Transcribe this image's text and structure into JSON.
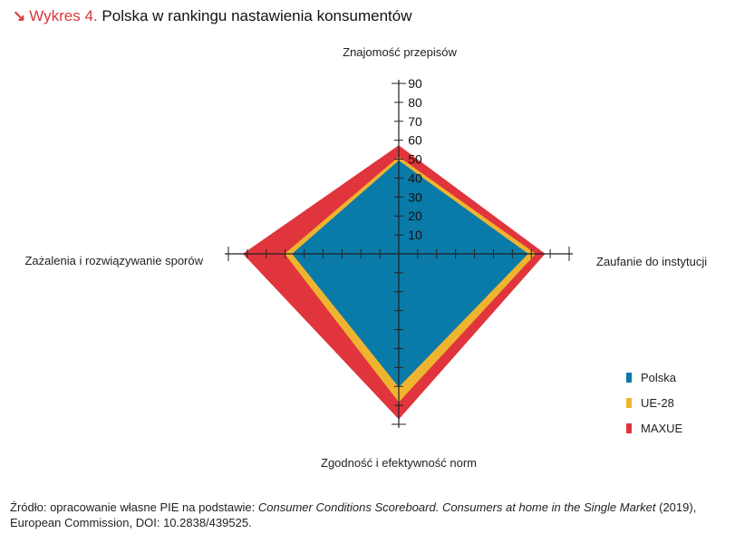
{
  "title": {
    "arrow": "↘",
    "prefix": "Wykres 4.",
    "text": "Polska w rankingu nastawienia konsumentów"
  },
  "source": {
    "part1": "Źródło: opracowanie własne PIE na podstawie: ",
    "italic": "Consumer Conditions Scoreboard. Consumers at home in the Single Market",
    "part2": " (2019), European Commission, DOI: 10.2838/439525."
  },
  "chart_data": {
    "type": "radar",
    "axes": [
      "Znajomość przepisów",
      "Zaufanie do instytucji",
      "Zgodność i efektywność norm",
      "Zażalenia i rozwiązywanie sporów"
    ],
    "rlim": [
      0,
      90
    ],
    "ticks": [
      10,
      20,
      30,
      40,
      50,
      60,
      70,
      80,
      90
    ],
    "series": [
      {
        "name": "MAXUE",
        "color": "#e0353c",
        "values": [
          57,
          77,
          87,
          82
        ]
      },
      {
        "name": "UE-28",
        "color": "#efb42f",
        "values": [
          51,
          72,
          78,
          60
        ]
      },
      {
        "name": "Polska",
        "color": "#0a7aa8",
        "values": [
          49,
          68,
          70,
          56
        ]
      }
    ],
    "legend_order": [
      "Polska",
      "UE-28",
      "MAXUE"
    ],
    "legend_position": "right"
  }
}
